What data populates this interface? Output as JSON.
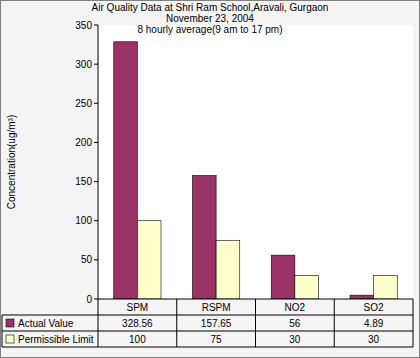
{
  "chart_data": {
    "type": "bar",
    "title": [
      "Air Quality Data at Shri Ram School,Aravali, Gurgaon",
      "November 23, 2004",
      "8 hourly average(9 am to 17 pm)"
    ],
    "y_label": "Concentration(ug/m³)",
    "categories": [
      "SPM",
      "RSPM",
      "NO2",
      "SO2"
    ],
    "series": [
      {
        "name": "Actual Value",
        "color": "#993366",
        "values": [
          328.56,
          157.65,
          56,
          4.89
        ]
      },
      {
        "name": "Permissible Limit",
        "color": "#ffffcc",
        "values": [
          100,
          75,
          30,
          30
        ]
      }
    ],
    "ylim": [
      0,
      350
    ],
    "yticks": [
      0,
      50,
      100,
      150,
      200,
      250,
      300,
      350
    ],
    "grid": false
  }
}
